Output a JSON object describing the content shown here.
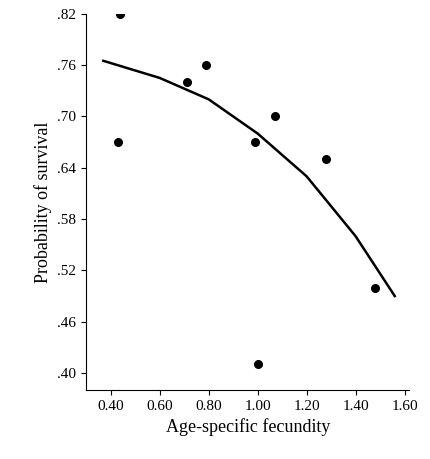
{
  "chart_data": {
    "type": "scatter",
    "x_label": "Age-specific fecundity",
    "y_label": "Probability of survival",
    "xlim": [
      0.3,
      1.62
    ],
    "ylim": [
      0.38,
      0.82
    ],
    "xticks": [
      {
        "value": 0.4,
        "label": "0.40"
      },
      {
        "value": 0.6,
        "label": "0.60"
      },
      {
        "value": 0.8,
        "label": "0.80"
      },
      {
        "value": 1.0,
        "label": "1.00"
      },
      {
        "value": 1.2,
        "label": "1.20"
      },
      {
        "value": 1.4,
        "label": "1.40"
      },
      {
        "value": 1.6,
        "label": "1.60"
      }
    ],
    "yticks": [
      {
        "value": 0.4,
        "label": ".40"
      },
      {
        "value": 0.46,
        "label": ".46"
      },
      {
        "value": 0.52,
        "label": ".52"
      },
      {
        "value": 0.58,
        "label": ".58"
      },
      {
        "value": 0.64,
        "label": ".64"
      },
      {
        "value": 0.7,
        "label": ".70"
      },
      {
        "value": 0.76,
        "label": ".76"
      },
      {
        "value": 0.82,
        "label": ".82"
      }
    ],
    "series": [
      {
        "type": "scatter",
        "color": "#000000",
        "marker": "o",
        "x": [
          0.43,
          0.44,
          0.71,
          0.79,
          0.99,
          1.0,
          1.07,
          1.28,
          1.48
        ],
        "values": [
          0.67,
          0.82,
          0.74,
          0.76,
          0.67,
          0.41,
          0.7,
          0.65,
          0.5
        ]
      },
      {
        "type": "line",
        "color": "#000000",
        "line_style": "solid",
        "x": [
          0.37,
          0.6,
          0.8,
          1.0,
          1.2,
          1.4,
          1.56
        ],
        "values": [
          0.765,
          0.745,
          0.72,
          0.68,
          0.63,
          0.56,
          0.49
        ]
      }
    ]
  }
}
